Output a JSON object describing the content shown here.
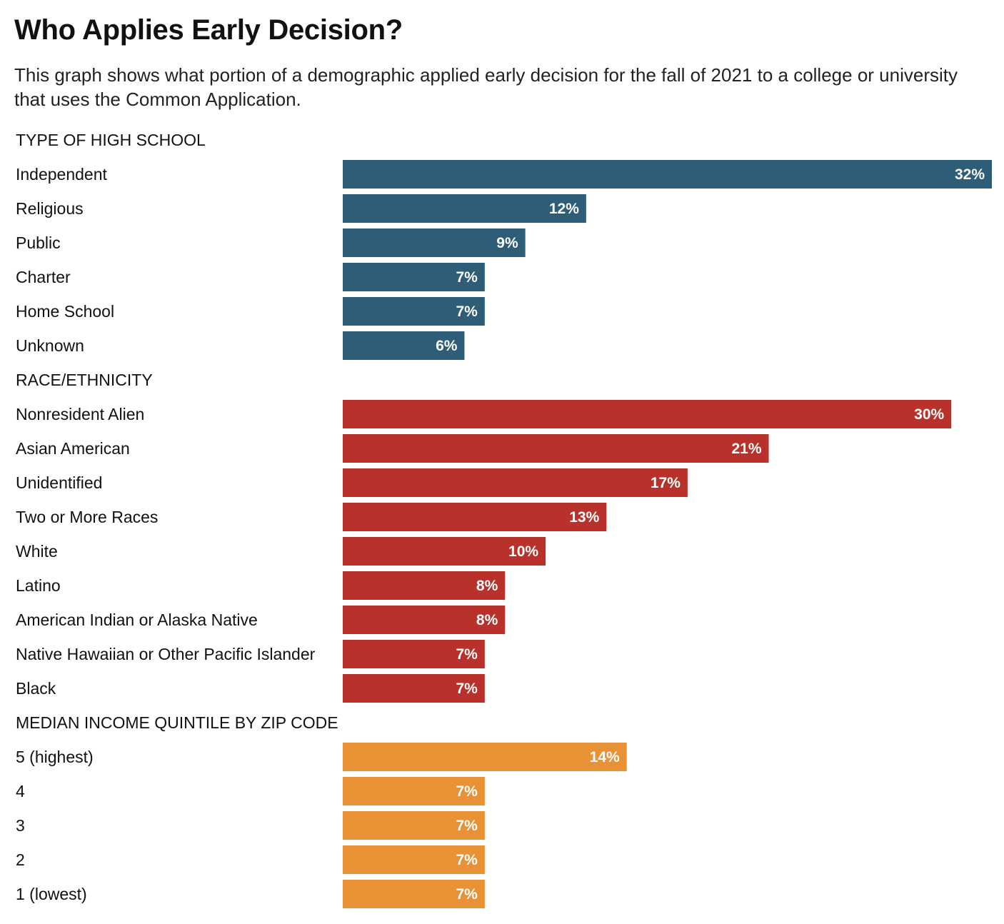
{
  "chart_data": {
    "type": "bar",
    "orientation": "horizontal",
    "title": "Who Applies Early Decision?",
    "subtitle": "This graph shows what portion of a demographic applied early decision for the fall of 2021 to a college or university that uses the Common Application.",
    "value_format": "percent",
    "xlim": [
      0,
      32
    ],
    "grid": false,
    "groups": [
      {
        "name": "TYPE OF HIGH SCHOOL",
        "color": "#2e5e77",
        "categories": [
          "Independent",
          "Religious",
          "Public",
          "Charter",
          "Home School",
          "Unknown"
        ],
        "values": [
          32,
          12,
          9,
          7,
          7,
          6
        ],
        "labels": [
          "32%",
          "12%",
          "9%",
          "7%",
          "7%",
          "6%"
        ]
      },
      {
        "name": "RACE/ETHNICITY",
        "color": "#b8312b",
        "categories": [
          "Nonresident Alien",
          "Asian American",
          "Unidentified",
          "Two or More Races",
          "White",
          "Latino",
          "American Indian or Alaska Native",
          "Native Hawaiian or Other Pacific Islander",
          "Black"
        ],
        "values": [
          30,
          21,
          17,
          13,
          10,
          8,
          8,
          7,
          7
        ],
        "labels": [
          "30%",
          "21%",
          "17%",
          "13%",
          "10%",
          "8%",
          "8%",
          "7%",
          "7%"
        ]
      },
      {
        "name": "MEDIAN INCOME QUINTILE BY ZIP CODE",
        "color": "#e89235",
        "categories": [
          "5 (highest)",
          "4",
          "3",
          "2",
          "1 (lowest)"
        ],
        "values": [
          14,
          7,
          7,
          7,
          7
        ],
        "labels": [
          "14%",
          "7%",
          "7%",
          "7%",
          "7%"
        ]
      }
    ]
  }
}
